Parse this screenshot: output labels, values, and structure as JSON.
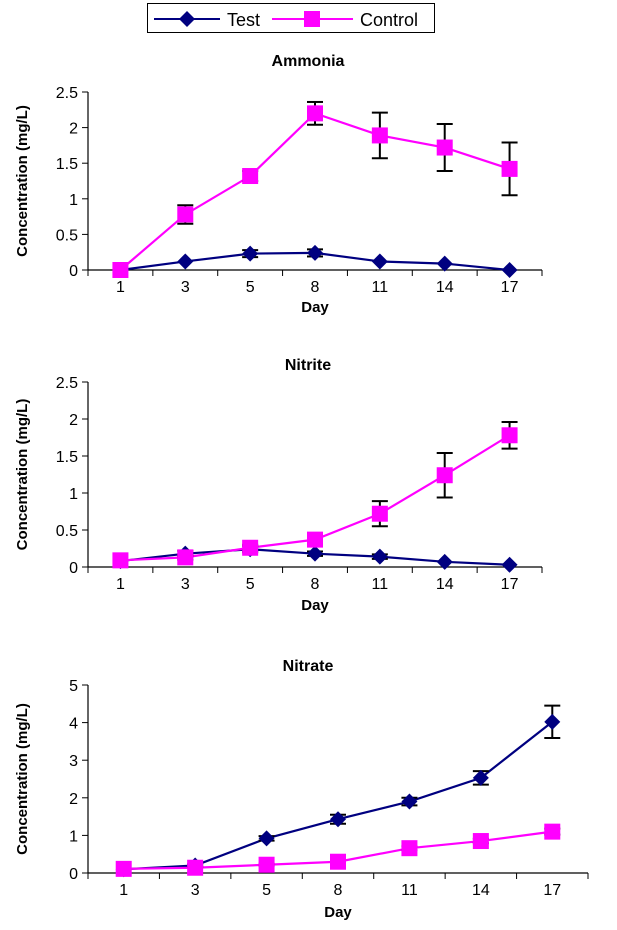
{
  "legend": {
    "position": "top",
    "entries": [
      {
        "name": "Test",
        "color": "#000080",
        "marker": "diamond"
      },
      {
        "name": "Control",
        "color": "#FF00FF",
        "marker": "square"
      }
    ]
  },
  "chart_data": [
    {
      "type": "line",
      "title": "Ammonia",
      "xlabel": "Day",
      "ylabel": "Concentration (mg/L)",
      "categories": [
        "1",
        "3",
        "5",
        "8",
        "11",
        "14",
        "17"
      ],
      "ylim": [
        0,
        2.5
      ],
      "yticks": [
        "0",
        "0.5",
        "1",
        "1.5",
        "2",
        "2.5"
      ],
      "grid": false,
      "series": [
        {
          "name": "Test",
          "color": "#000080",
          "marker": "diamond",
          "values": [
            0,
            0.12,
            0.23,
            0.24,
            0.12,
            0.09,
            0
          ],
          "errors": [
            0,
            0.02,
            0.05,
            0.05,
            0.02,
            0.02,
            0
          ]
        },
        {
          "name": "Control",
          "color": "#FF00FF",
          "marker": "square",
          "values": [
            0,
            0.78,
            1.32,
            2.2,
            1.89,
            1.72,
            1.42
          ],
          "errors": [
            0,
            0.13,
            0.07,
            0.16,
            0.32,
            0.33,
            0.37
          ]
        }
      ]
    },
    {
      "type": "line",
      "title": "Nitrite",
      "xlabel": "Day",
      "ylabel": "Concentration (mg/L)",
      "categories": [
        "1",
        "3",
        "5",
        "8",
        "11",
        "14",
        "17"
      ],
      "ylim": [
        0,
        2.5
      ],
      "yticks": [
        "0",
        "0.5",
        "1",
        "1.5",
        "2",
        "2.5"
      ],
      "grid": false,
      "series": [
        {
          "name": "Test",
          "color": "#000080",
          "marker": "diamond",
          "values": [
            0.08,
            0.18,
            0.24,
            0.18,
            0.14,
            0.07,
            0.03
          ],
          "errors": [
            0.02,
            0.04,
            0.04,
            0.03,
            0.03,
            0.02,
            0.01
          ]
        },
        {
          "name": "Control",
          "color": "#FF00FF",
          "marker": "square",
          "values": [
            0.09,
            0.13,
            0.26,
            0.37,
            0.72,
            1.24,
            1.78
          ],
          "errors": [
            0.02,
            0.03,
            0.04,
            0.04,
            0.17,
            0.3,
            0.18
          ]
        }
      ]
    },
    {
      "type": "line",
      "title": "Nitrate",
      "xlabel": "Day",
      "ylabel": "Concentration (mg/L)",
      "categories": [
        "1",
        "3",
        "5",
        "8",
        "11",
        "14",
        "17"
      ],
      "ylim": [
        0,
        5
      ],
      "yticks": [
        "0",
        "1",
        "2",
        "3",
        "4",
        "5"
      ],
      "grid": false,
      "series": [
        {
          "name": "Test",
          "color": "#000080",
          "marker": "diamond",
          "values": [
            0.1,
            0.2,
            0.92,
            1.43,
            1.9,
            2.53,
            4.02
          ],
          "errors": [
            0.02,
            0.03,
            0.06,
            0.12,
            0.1,
            0.18,
            0.43
          ]
        },
        {
          "name": "Control",
          "color": "#FF00FF",
          "marker": "square",
          "values": [
            0.11,
            0.14,
            0.22,
            0.3,
            0.66,
            0.85,
            1.1
          ],
          "errors": [
            0.02,
            0.02,
            0.03,
            0.03,
            0.05,
            0.06,
            0.08
          ]
        }
      ]
    }
  ]
}
